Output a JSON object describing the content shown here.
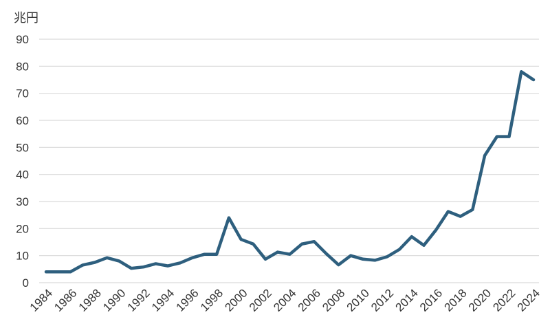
{
  "chart_data": {
    "type": "line",
    "ylabel": "兆円",
    "ylim": [
      0,
      90
    ],
    "yticks": [
      0,
      10,
      20,
      30,
      40,
      50,
      60,
      70,
      80,
      90
    ],
    "xlim": [
      1984,
      2024
    ],
    "xtick_labels": [
      "1984",
      "1986",
      "1988",
      "1990",
      "1992",
      "1994",
      "1996",
      "1998",
      "2000",
      "2002",
      "2004",
      "2006",
      "2008",
      "2010",
      "2012",
      "2014",
      "2016",
      "2018",
      "2020",
      "2022",
      "2024"
    ],
    "grid": true,
    "legend": "none",
    "series": [
      {
        "color": "#2e5f7e",
        "x": [
          1984,
          1985,
          1986,
          1987,
          1988,
          1989,
          1990,
          1991,
          1992,
          1993,
          1994,
          1995,
          1996,
          1997,
          1998,
          1999,
          2000,
          2001,
          2002,
          2003,
          2004,
          2005,
          2006,
          2007,
          2008,
          2009,
          2010,
          2011,
          2012,
          2013,
          2014,
          2015,
          2016,
          2017,
          2018,
          2019,
          2020,
          2021,
          2022,
          2023,
          2024
        ],
        "values": [
          4,
          4,
          4,
          6.5,
          7.5,
          9.2,
          8,
          5.3,
          5.8,
          7,
          6.2,
          7.3,
          9.2,
          10.5,
          10.5,
          24,
          16,
          14.3,
          8.7,
          11.3,
          10.5,
          14.3,
          15.2,
          10.7,
          6.6,
          10,
          8.7,
          8.3,
          9.6,
          12.3,
          17,
          13.8,
          19.5,
          26.3,
          24.5,
          27,
          47,
          54,
          54,
          78,
          75
        ]
      }
    ]
  }
}
